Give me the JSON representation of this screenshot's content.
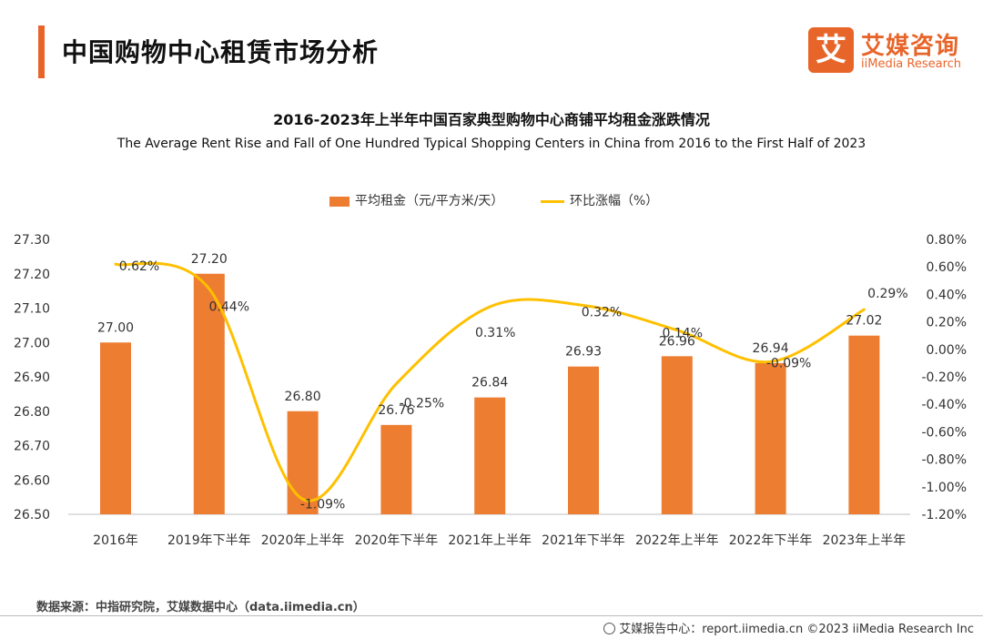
{
  "header": {
    "title": "中国购物中心租赁市场分析",
    "logo_mark": "艾",
    "logo_cn": "艾媒咨询",
    "logo_en": "iiMedia Research"
  },
  "chart_data": {
    "type": "bar",
    "title": "2016-2023年上半年中国百家典型购物中心商铺平均租金涨跌情况",
    "subtitle": "The Average Rent Rise and Fall of One Hundred Typical Shopping Centers in China from 2016 to the First Half of 2023",
    "categories": [
      "2016年",
      "2019年下半年",
      "2020年上半年",
      "2020年下半年",
      "2021年上半年",
      "2021年下半年",
      "2022年上半年",
      "2022年下半年",
      "2023年上半年"
    ],
    "series": [
      {
        "name": "平均租金（元/平方米/天）",
        "type": "bar",
        "axis": "left",
        "color": "#ed7d31",
        "values": [
          27.0,
          27.2,
          26.8,
          26.76,
          26.84,
          26.93,
          26.96,
          26.94,
          27.02
        ],
        "labels": [
          "27.00",
          "27.20",
          "26.80",
          "26.76",
          "26.84",
          "26.93",
          "26.96",
          "26.94",
          "27.02"
        ]
      },
      {
        "name": "环比涨幅（%）",
        "type": "line",
        "smooth": true,
        "axis": "right",
        "color": "#ffc000",
        "values": [
          0.62,
          0.44,
          -1.09,
          -0.25,
          0.31,
          0.32,
          0.14,
          -0.09,
          0.29
        ],
        "labels": [
          "0.62%",
          "0.44%",
          "-1.09%",
          "-0.25%",
          "0.31%",
          "0.32%",
          "0.14%",
          "-0.09%",
          "0.29%"
        ]
      }
    ],
    "y_left": {
      "range": [
        26.5,
        27.3
      ],
      "ticks": [
        "26.50",
        "26.60",
        "26.70",
        "26.80",
        "26.90",
        "27.00",
        "27.10",
        "27.20",
        "27.30"
      ]
    },
    "y_right": {
      "range": [
        -1.2,
        0.8
      ],
      "ticks": [
        "-1.20%",
        "-1.00%",
        "-0.80%",
        "-0.60%",
        "-0.40%",
        "-0.20%",
        "0.00%",
        "0.20%",
        "0.40%",
        "0.60%",
        "0.80%"
      ]
    },
    "grid": false,
    "legend_position": "top"
  },
  "footer": {
    "source": "数据来源：中指研究院，艾媒数据中心（data.iimedia.cn）",
    "right": "艾媒报告中心：report.iimedia.cn  ©2023  iiMedia Research  Inc"
  }
}
